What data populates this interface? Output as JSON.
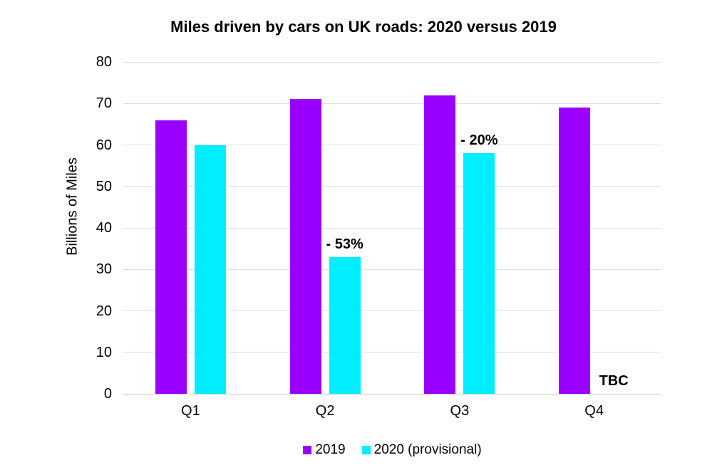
{
  "title": "Miles driven by cars on UK roads: 2020 versus 2019",
  "chart_data": {
    "type": "bar",
    "title": "Miles driven by cars on UK roads: 2020 versus 2019",
    "ylabel": "Billions of Miles",
    "xlabel": "",
    "categories": [
      "Q1",
      "Q2",
      "Q3",
      "Q4"
    ],
    "series": [
      {
        "name": "2019",
        "color": "#9900ff",
        "values": [
          66,
          71,
          72,
          69
        ]
      },
      {
        "name": "2020 (provisional)",
        "color": "#00eeff",
        "values": [
          60,
          33,
          58,
          null
        ]
      }
    ],
    "annotations": [
      {
        "category": "Q2",
        "series_index": 1,
        "text": "- 53%"
      },
      {
        "category": "Q3",
        "series_index": 1,
        "text": "- 20%"
      },
      {
        "category": "Q4",
        "series_index": 1,
        "text": "TBC"
      }
    ],
    "ylim": [
      0,
      80
    ],
    "yticks": [
      0,
      10,
      20,
      30,
      40,
      50,
      60,
      70,
      80
    ],
    "grid": true,
    "legend_position": "bottom",
    "gridline_color": "#e1e1e1",
    "text_color": "#000000"
  }
}
